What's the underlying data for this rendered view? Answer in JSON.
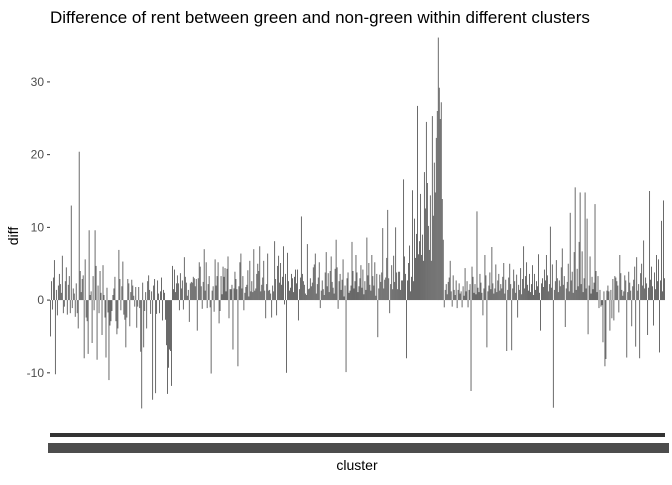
{
  "chart_data": {
    "type": "bar",
    "title": "Difference of rent between green and non-green within different clusters",
    "xlabel": "cluster",
    "ylabel": "diff",
    "ylim": [
      -18,
      37
    ],
    "yticks": [
      -10,
      0,
      10,
      20,
      30
    ],
    "grid": false,
    "legend": "none",
    "bar_color": "#595959",
    "x_tick_labels_illegible": true,
    "series": [
      {
        "values": [
          -5.0,
          2.6,
          -1.3,
          3.1,
          5.5,
          -10.2,
          1.4,
          -2.1,
          2.0,
          3.6,
          2.2,
          1.0,
          6.1,
          -1.8,
          -0.9,
          2.6,
          4.5,
          -2.0,
          2.1,
          3.3,
          -1.8,
          13.0,
          -1.1,
          1.6,
          0.9,
          -2.3,
          2.3,
          -1.8,
          -3.9,
          20.4,
          4.0,
          1.1,
          2.9,
          3.4,
          -8.0,
          5.6,
          -2.4,
          -2.9,
          -7.4,
          9.6,
          0.7,
          1.2,
          -5.9,
          3.3,
          -1.4,
          9.6,
          4.7,
          -8.2,
          2.0,
          -1.8,
          4.0,
          1.0,
          -4.8,
          4.8,
          0.7,
          -2.4,
          -7.9,
          1.7,
          -1.7,
          -11.0,
          -3.5,
          -2.9,
          -1.5,
          0.7,
          1.6,
          3.2,
          -2.9,
          -4.7,
          -3.9,
          6.9,
          2.9,
          -1.4,
          1.9,
          5.3,
          -2.0,
          -2.7,
          -6.5,
          -2.4,
          2.9,
          2.3,
          -3.6,
          1.1,
          2.8,
          2.0,
          0.6,
          -0.9,
          1.8,
          -3.8,
          -0.9,
          1.8,
          -1.1,
          -7.1,
          -14.9,
          2.4,
          -6.5,
          -1.5,
          1.1,
          -3.9,
          2.6,
          3.4,
          1.4,
          -1.9,
          1.2,
          -13.7,
          2.0,
          2.9,
          -12.8,
          -1.9,
          2.7,
          0.9,
          -1.8,
          1.2,
          3.1,
          -2.8,
          1.4,
          1.0,
          -2.7,
          -6.2,
          -12.9,
          -9.3,
          -6.8,
          -7.0,
          -11.8,
          4.7,
          1.5,
          4.2,
          1.1,
          2.3,
          3.4,
          2.3,
          -1.4,
          3.7,
          1.6,
          2.7,
          -1.3,
          5.9,
          3.2,
          2.4,
          0.6,
          1.4,
          -3.0,
          2.3,
          2.5,
          2.4,
          3.2,
          3.0,
          1.9,
          2.9,
          -4.2,
          3.0,
          5.2,
          4.6,
          1.9,
          -1.2,
          2.5,
          7.0,
          1.3,
          5.2,
          -1.1,
          2.2,
          3.3,
          -1.0,
          -10.1,
          1.3,
          1.9,
          -1.6,
          5.6,
          2.0,
          3.3,
          5.2,
          -3.2,
          -1.5,
          3.3,
          0.8,
          4.6,
          3.2,
          4.4,
          1.2,
          4.3,
          6.0,
          -2.5,
          1.5,
          1.5,
          2.1,
          -6.8,
          1.6,
          3.9,
          2.9,
          1.5,
          -9.1,
          1.9,
          5.2,
          6.4,
          1.6,
          3.3,
          -1.4,
          1.0,
          1.8,
          2.1,
          4.1,
          0.5,
          5.4,
          1.2,
          2.6,
          1.1,
          7.0,
          1.3,
          1.6,
          3.6,
          5.0,
          4.0,
          7.4,
          1.2,
          2.1,
          3.1,
          5.4,
          1.3,
          -2.5,
          2.2,
          6.4,
          1.3,
          1.4,
          0.9,
          -2.4,
          2.0,
          1.2,
          8.1,
          2.9,
          -2.1,
          4.7,
          6.1,
          2.4,
          5.1,
          2.1,
          3.2,
          7.4,
          -0.6,
          3.6,
          -10.0,
          6.5,
          2.6,
          1.3,
          1.7,
          3.6,
          3.0,
          1.1,
          3.2,
          4.2,
          2.3,
          4.2,
          -2.8,
          1.5,
          3.1,
          11.5,
          3.6,
          2.6,
          2.1,
          0.9,
          0.7,
          7.7,
          1.5,
          1.6,
          3.0,
          1.9,
          2.4,
          4.5,
          4.9,
          6.4,
          0.9,
          2.2,
          3.1,
          5.2,
          -1.1,
          1.3,
          2.7,
          1.5,
          0.7,
          3.8,
          6.6,
          1.9,
          3.7,
          1.1,
          4.0,
          6.0,
          2.5,
          1.7,
          0.9,
          4.3,
          8.3,
          4.5,
          -1.2,
          2.6,
          3.6,
          1.4,
          2.8,
          5.6,
          0.5,
          2.0,
          -9.9,
          3.0,
          3.8,
          1.0,
          1.3,
          2.0,
          8.0,
          4.0,
          1.6,
          2.6,
          6.2,
          3.8,
          1.1,
          1.9,
          3.0,
          4.8,
          1.7,
          4.2,
          0.8,
          2.6,
          1.4,
          8.6,
          3.4,
          5.1,
          2.1,
          1.3,
          6.2,
          3.3,
          2.0,
          5.2,
          0.6,
          3.6,
          -5.1,
          1.6,
          3.5,
          2.5,
          3.8,
          9.9,
          1.6,
          2.8,
          3.1,
          5.8,
          12.4,
          3.0,
          -1.8,
          2.2,
          4.8,
          1.5,
          6.1,
          2.5,
          10.0,
          3.8,
          1.5,
          3.9,
          3.9,
          1.4,
          2.7,
          2.7,
          16.6,
          6.0,
          3.6,
          -8.0,
          2.7,
          5.1,
          7.5,
          1.2,
          3.2,
          15.1,
          2.6,
          11.2,
          5.8,
          9.1,
          26.7,
          6.3,
          8.1,
          14.6,
          6.2,
          9.0,
          5.4,
          17.6,
          12.6,
          24.5,
          16.1,
          10.2,
          6.9,
          14.4,
          5.4,
          25.3,
          11.6,
          18.9,
          14.8,
          22.3,
          26.0,
          36.1,
          29.2,
          24.9,
          27.2,
          13.9,
          8.3,
          -1.0,
          1.4,
          2.2,
          0.8,
          2.5,
          3.1,
          5.4,
          1.2,
          -0.9,
          3.4,
          1.4,
          0.7,
          2.7,
          -1.1,
          1.4,
          2.3,
          0.9,
          1.2,
          -1.0,
          1.9,
          0.6,
          4.4,
          1.2,
          2.6,
          -1.0,
          1.4,
          2.2,
          -12.5,
          4.6,
          3.2,
          1.0,
          2.2,
          0.8,
          12.2,
          1.7,
          1.1,
          3.6,
          2.4,
          1.0,
          -2.1,
          1.6,
          6.2,
          3.4,
          -6.5,
          1.2,
          2.0,
          3.8,
          1.5,
          7.3,
          2.3,
          0.9,
          1.6,
          4.9,
          1.1,
          2.7,
          3.6,
          1.3,
          2.2,
          1.6,
          3.2,
          5.1,
          0.9,
          2.8,
          -7.0,
          1.4,
          3.1,
          5.0,
          2.2,
          -6.9,
          1.6,
          4.2,
          2.6,
          1.0,
          3.5,
          -2.4,
          2.1,
          1.4,
          4.4,
          0.8,
          2.9,
          7.4,
          1.6,
          3.3,
          5.2,
          2.1,
          1.3,
          3.6,
          1.1,
          2.2,
          4.8,
          0.7,
          3.6,
          1.4,
          2.6,
          1.9,
          6.3,
          1.0,
          -4.2,
          2.3,
          3.0,
          1.8,
          4.2,
          2.7,
          6.2,
          3.4,
          1.2,
          2.2,
          10.1,
          1.7,
          4.9,
          -14.8,
          1.4,
          2.6,
          5.5,
          3.0,
          1.1,
          2.7,
          1.9,
          4.5,
          7.1,
          2.1,
          3.3,
          -3.7,
          1.6,
          2.5,
          5.0,
          1.2,
          12.0,
          2.7,
          3.9,
          1.0,
          6.6,
          15.5,
          1.4,
          4.3,
          1.9,
          8.0,
          14.8,
          2.2,
          6.7,
          1.1,
          3.0,
          14.8,
          1.6,
          11.2,
          -4.7,
          2.0,
          6.0,
          0.9,
          3.2,
          1.5,
          2.4,
          13.2,
          4.0,
          1.1,
          3.3,
          -1.1,
          1.4,
          -0.9,
          -0.7,
          -5.8,
          1.2,
          -9.1,
          -8.1,
          1.3,
          2.0,
          1.2,
          -4.2,
          1.4,
          -2.5,
          2.9,
          -2.8,
          3.3,
          3.1,
          2.6,
          2.0,
          -1.7,
          6.2,
          3.7,
          1.4,
          0.6,
          1.2,
          3.4,
          2.7,
          -7.9,
          1.1,
          3.9,
          2.4,
          1.3,
          -3.6,
          1.9,
          2.8,
          4.6,
          -6.4,
          5.9,
          1.3,
          2.2,
          -8.0,
          3.7,
          5.0,
          2.0,
          8.2,
          1.6,
          3.1,
          2.3,
          -4.8,
          1.7,
          15.0,
          2.8,
          4.6,
          1.9,
          -3.5,
          3.8,
          1.5,
          6.2,
          2.6,
          5.6,
          -7.2,
          2.7,
          10.9,
          1.2,
          13.7,
          3.0
        ]
      }
    ]
  }
}
